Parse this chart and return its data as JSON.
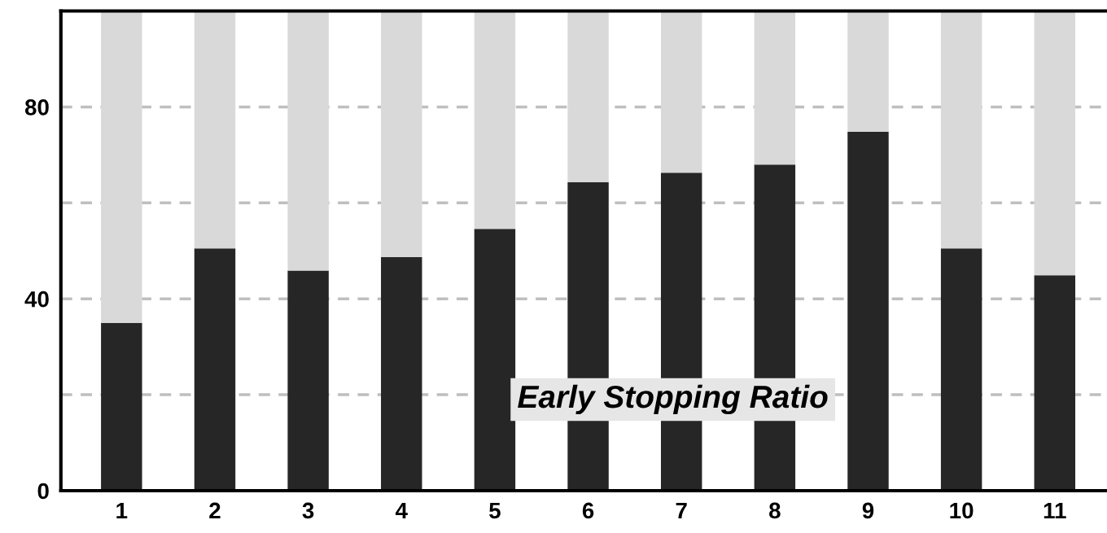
{
  "chart_data": {
    "type": "bar",
    "stacked": true,
    "categories": [
      "1",
      "2",
      "3",
      "4",
      "5",
      "6",
      "7",
      "8",
      "9",
      "10",
      "11"
    ],
    "series": [
      {
        "color": "#262626",
        "values": [
          35.0,
          50.5,
          45.9,
          48.7,
          54.6,
          64.3,
          66.3,
          68.0,
          74.8,
          50.5,
          44.9
        ]
      },
      {
        "color": "#d9d9d9",
        "values": [
          65.0,
          49.5,
          54.1,
          51.3,
          45.4,
          35.7,
          33.7,
          32.0,
          25.2,
          49.5,
          55.1
        ]
      }
    ],
    "ylim": [
      0,
      100
    ],
    "yticks": [
      0,
      {
        "value": 20,
        "label": null
      },
      40,
      {
        "value": 60,
        "label": null
      },
      80
    ],
    "grid": "y",
    "legend": false,
    "annotations": [
      "Early Stopping Ratio"
    ]
  }
}
